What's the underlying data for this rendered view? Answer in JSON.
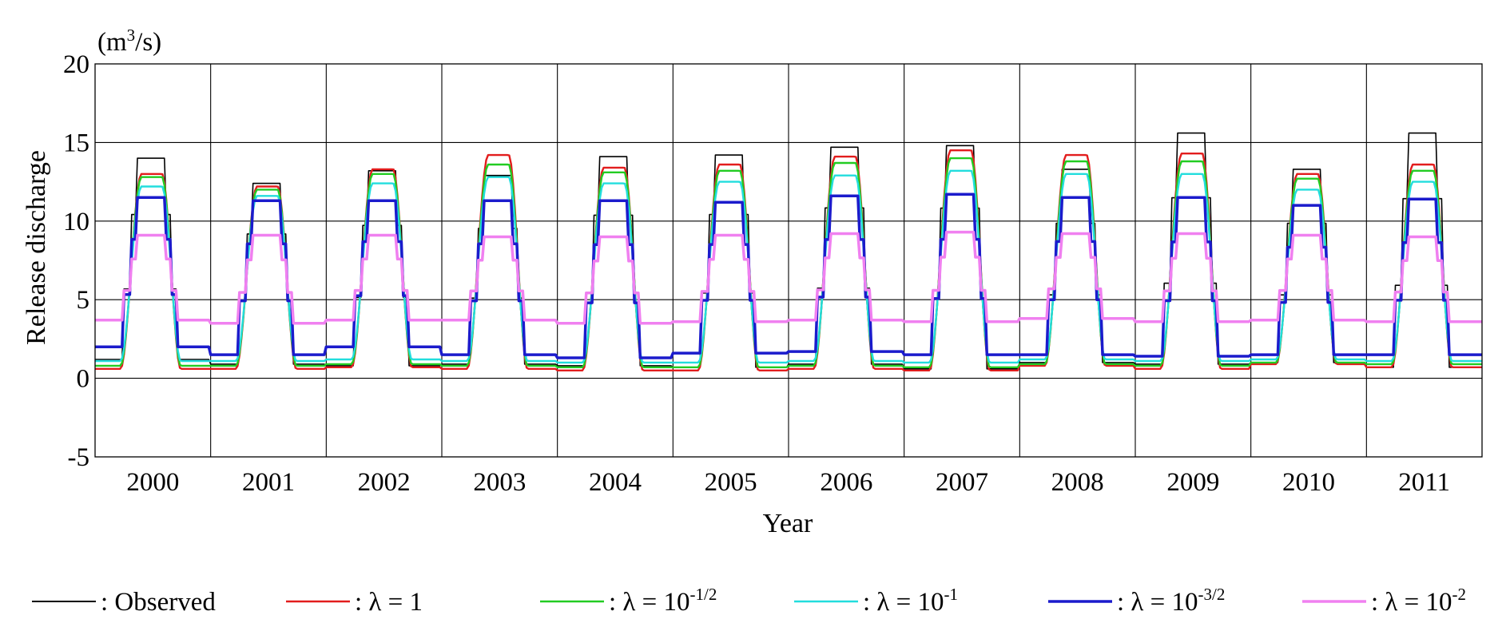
{
  "chart_data": {
    "type": "line",
    "xlabel": "Year",
    "ylabel": "Release discharge",
    "yunit_base": "(m",
    "yunit_sup": "3",
    "yunit_tail": "/s)",
    "ylim": [
      -5,
      20
    ],
    "yticks": [
      -5,
      0,
      5,
      10,
      15,
      20
    ],
    "xlim": [
      2000,
      2012
    ],
    "xtick_labels": [
      "2000",
      "2001",
      "2002",
      "2003",
      "2004",
      "2005",
      "2006",
      "2007",
      "2008",
      "2009",
      "2010",
      "2011"
    ],
    "grid": true,
    "legend_position": "bottom",
    "series": [
      {
        "name": "Observed",
        "legend_sup": "",
        "color": "#000000",
        "width": 1.6,
        "shape": "step",
        "peak": [
          14.0,
          12.4,
          13.2,
          12.9,
          14.1,
          14.2,
          14.7,
          14.8,
          13.3,
          15.6,
          13.3,
          15.6
        ],
        "base": [
          1.2,
          0.9,
          0.8,
          0.9,
          0.8,
          0.7,
          0.9,
          0.6,
          1.0,
          0.9,
          1.0,
          0.7
        ]
      },
      {
        "name": "λ = 1",
        "legend_sup": "",
        "color": "#e21d1d",
        "width": 2.4,
        "shape": "smooth",
        "peak": [
          13.0,
          12.2,
          13.3,
          14.2,
          13.4,
          13.6,
          14.1,
          14.5,
          14.2,
          14.3,
          13.0,
          13.6
        ],
        "base": [
          0.6,
          0.6,
          0.7,
          0.6,
          0.5,
          0.5,
          0.6,
          0.5,
          0.8,
          0.6,
          0.9,
          0.7
        ]
      },
      {
        "name": "λ = 10",
        "legend_sup": "-1/2",
        "color": "#22cc22",
        "width": 2.4,
        "shape": "smooth",
        "peak": [
          12.8,
          12.0,
          13.0,
          13.6,
          13.1,
          13.2,
          13.7,
          14.0,
          13.8,
          13.8,
          12.7,
          13.2
        ],
        "base": [
          0.8,
          0.8,
          0.9,
          0.8,
          0.7,
          0.7,
          0.8,
          0.7,
          0.9,
          0.8,
          1.0,
          0.9
        ]
      },
      {
        "name": "λ = 10",
        "legend_sup": "-1",
        "color": "#22dddd",
        "width": 2.4,
        "shape": "smooth",
        "peak": [
          12.2,
          11.6,
          12.4,
          12.8,
          12.4,
          12.5,
          12.9,
          13.2,
          13.0,
          13.0,
          12.0,
          12.5
        ],
        "base": [
          1.1,
          1.1,
          1.2,
          1.1,
          1.0,
          1.0,
          1.1,
          1.0,
          1.2,
          1.1,
          1.2,
          1.1
        ]
      },
      {
        "name": "λ = 10",
        "legend_sup": "-3/2",
        "color": "#1b1bcc",
        "width": 3.5,
        "shape": "step",
        "peak": [
          11.5,
          11.3,
          11.3,
          11.3,
          11.3,
          11.2,
          11.6,
          11.7,
          11.5,
          11.5,
          11.0,
          11.4
        ],
        "base": [
          2.0,
          1.5,
          2.0,
          1.5,
          1.3,
          1.6,
          1.7,
          1.5,
          1.5,
          1.4,
          1.5,
          1.5
        ]
      },
      {
        "name": "λ = 10",
        "legend_sup": "-2",
        "color": "#f080f0",
        "width": 3.5,
        "shape": "step",
        "peak": [
          9.1,
          9.1,
          9.1,
          9.0,
          9.0,
          9.1,
          9.2,
          9.3,
          9.2,
          9.2,
          9.1,
          9.0
        ],
        "base": [
          3.7,
          3.5,
          3.7,
          3.7,
          3.5,
          3.6,
          3.7,
          3.6,
          3.8,
          3.6,
          3.7,
          3.6
        ]
      }
    ]
  }
}
